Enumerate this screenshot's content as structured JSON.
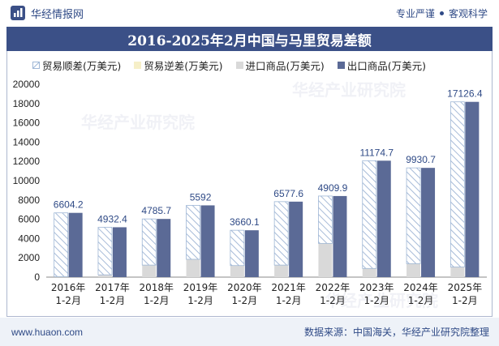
{
  "header": {
    "brand_name": "华经情报网",
    "tagline_1": "专业严谨",
    "tagline_2": "客观科学"
  },
  "footer": {
    "website": "www.huaon.com",
    "source": "数据来源：中国海关，华经产业研究院整理"
  },
  "watermark_text": "华经产业研究院",
  "colors": {
    "title_bg": "#3b5087",
    "export": "#5b6a96",
    "import": "#d9d9d9",
    "surplus_hatch": "#9fb7d6",
    "deficit": "#f6efc8"
  },
  "chart_data": {
    "type": "bar",
    "title": "2016-2025年2月中国与马里贸易差额",
    "categories": [
      "2016年\n1-2月",
      "2017年\n1-2月",
      "2018年\n1-2月",
      "2019年\n1-2月",
      "2020年\n1-2月",
      "2021年\n1-2月",
      "2022年\n1-2月",
      "2023年\n1-2月",
      "2024年\n1-2月",
      "2025年\n1-2月"
    ],
    "series": [
      {
        "name": "贸易顺差(万美元)",
        "values": [
          6604.2,
          4932.4,
          4785.7,
          5592,
          3660.1,
          6577.6,
          4909.9,
          11174.7,
          9930.7,
          17126.4
        ]
      },
      {
        "name": "贸易逆差(万美元)",
        "values": [
          0,
          0,
          0,
          0,
          0,
          0,
          0,
          0,
          0,
          0
        ]
      },
      {
        "name": "进口商品(万美元)",
        "values": [
          60,
          240,
          1250,
          1850,
          1200,
          1250,
          3500,
          900,
          1400,
          1050
        ]
      },
      {
        "name": "出口商品(万美元)",
        "values": [
          6664.2,
          5172.4,
          6035.7,
          7442,
          4860.1,
          7827.6,
          8409.9,
          12074.7,
          11330.7,
          18176.4
        ]
      }
    ],
    "data_labels": [
      "6604.2",
      "4932.4",
      "4785.7",
      "5592",
      "3660.1",
      "6577.6",
      "4909.9",
      "11174.7",
      "9930.7",
      "17126.4"
    ],
    "ylim": [
      0,
      20000
    ],
    "yticks": [
      0,
      2000,
      4000,
      6000,
      8000,
      10000,
      12000,
      14000,
      16000,
      18000,
      20000
    ],
    "legend_position": "top",
    "grid": false
  }
}
